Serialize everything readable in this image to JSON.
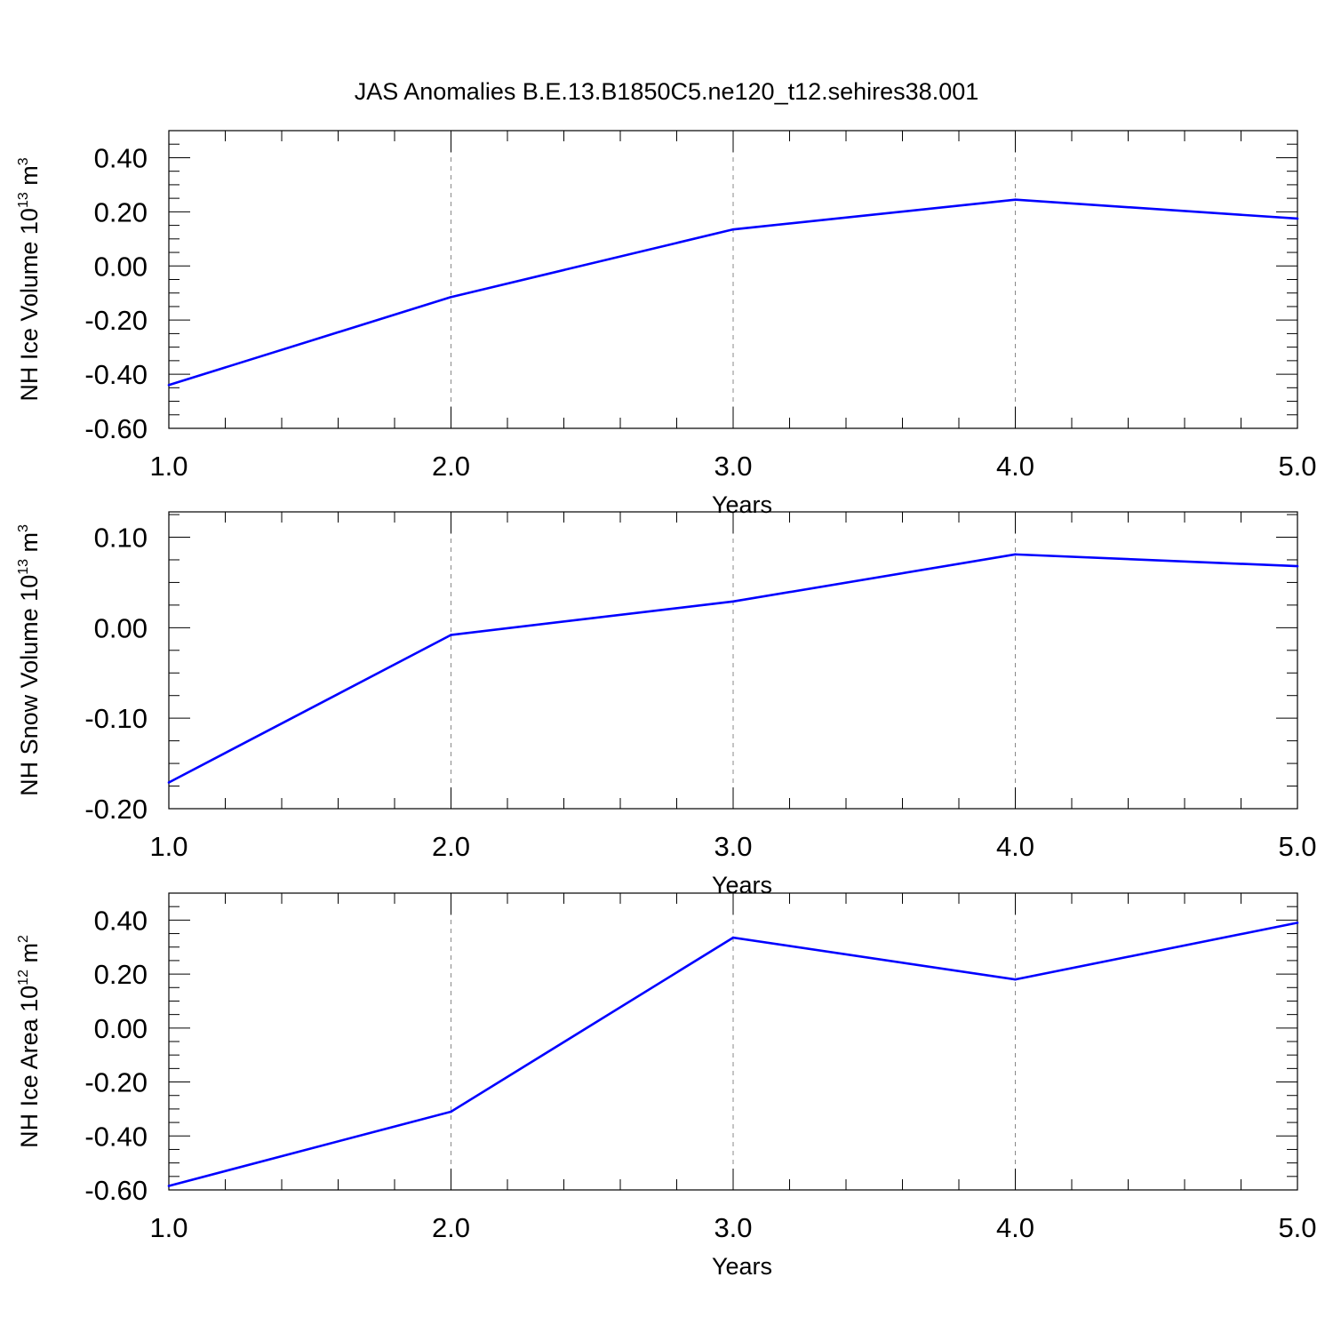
{
  "title": "JAS Anomalies B.E.13.B1850C5.ne120_t12.sehires38.001",
  "line_color": "#0000ff",
  "chart_data": [
    {
      "type": "line",
      "title": "",
      "xlabel": "Years",
      "ylabel": {
        "main": "NH Ice Volume 10",
        "exp": "13",
        "unit": " m",
        "unit_exp": "3"
      },
      "x": [
        1.0,
        2.0,
        3.0,
        4.0,
        5.0
      ],
      "xlim": [
        1.0,
        5.0
      ],
      "ylim": [
        -0.6,
        0.5
      ],
      "x_ticks": [
        "1.0",
        "2.0",
        "3.0",
        "4.0",
        "5.0"
      ],
      "y_ticks": [
        -0.6,
        -0.4,
        -0.2,
        0.0,
        0.2,
        0.4
      ],
      "y_tick_labels": [
        "-0.60",
        "-0.40",
        "-0.20",
        "0.00",
        "0.20",
        "0.40"
      ],
      "series": [
        {
          "values": [
            -0.44,
            -0.115,
            0.135,
            0.245,
            0.175
          ]
        }
      ]
    },
    {
      "type": "line",
      "title": "",
      "xlabel": "Years",
      "ylabel": {
        "main": "NH Snow Volume 10",
        "exp": "13",
        "unit": " m",
        "unit_exp": "3"
      },
      "x": [
        1.0,
        2.0,
        3.0,
        4.0,
        5.0
      ],
      "xlim": [
        1.0,
        5.0
      ],
      "ylim": [
        -0.2,
        0.128
      ],
      "x_ticks": [
        "1.0",
        "2.0",
        "3.0",
        "4.0",
        "5.0"
      ],
      "y_ticks": [
        -0.2,
        -0.1,
        0.0,
        0.1
      ],
      "y_tick_labels": [
        "-0.20",
        "-0.10",
        "0.00",
        "0.10"
      ],
      "series": [
        {
          "values": [
            -0.171,
            -0.008,
            0.029,
            0.081,
            0.068
          ]
        }
      ]
    },
    {
      "type": "line",
      "title": "",
      "xlabel": "Years",
      "ylabel": {
        "main": "NH Ice Area 10",
        "exp": "12",
        "unit": " m",
        "unit_exp": "2"
      },
      "x": [
        1.0,
        2.0,
        3.0,
        4.0,
        5.0
      ],
      "xlim": [
        1.0,
        5.0
      ],
      "ylim": [
        -0.6,
        0.5
      ],
      "x_ticks": [
        "1.0",
        "2.0",
        "3.0",
        "4.0",
        "5.0"
      ],
      "y_ticks": [
        -0.6,
        -0.4,
        -0.2,
        0.0,
        0.2,
        0.4
      ],
      "y_tick_labels": [
        "-0.60",
        "-0.40",
        "-0.20",
        "0.00",
        "0.20",
        "0.40"
      ],
      "series": [
        {
          "values": [
            -0.585,
            -0.31,
            0.335,
            0.18,
            0.39
          ]
        }
      ]
    }
  ]
}
